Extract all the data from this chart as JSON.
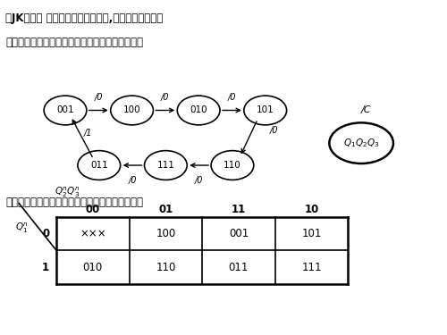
{
  "title_line1": "用JK触发器 设计一个七进制计数器,要求它能自启动。",
  "title_line2": "已知该计数器的状态转换图及状态编码如图所示。",
  "solution_text": "解：由给出的状态转换图可画出电路的次态卡诺图",
  "states_top": [
    "001",
    "100",
    "010",
    "101"
  ],
  "states_bottom": [
    "011",
    "111",
    "110"
  ],
  "karnaugh_col_labels": [
    "00",
    "01",
    "11",
    "10"
  ],
  "karnaugh_row_labels": [
    "0",
    "1"
  ],
  "karnaugh_data": [
    [
      "×××",
      "100",
      "001",
      "101"
    ],
    [
      "010",
      "110",
      "011",
      "111"
    ]
  ],
  "bg_color": "#ffffff",
  "text_color": "#000000"
}
